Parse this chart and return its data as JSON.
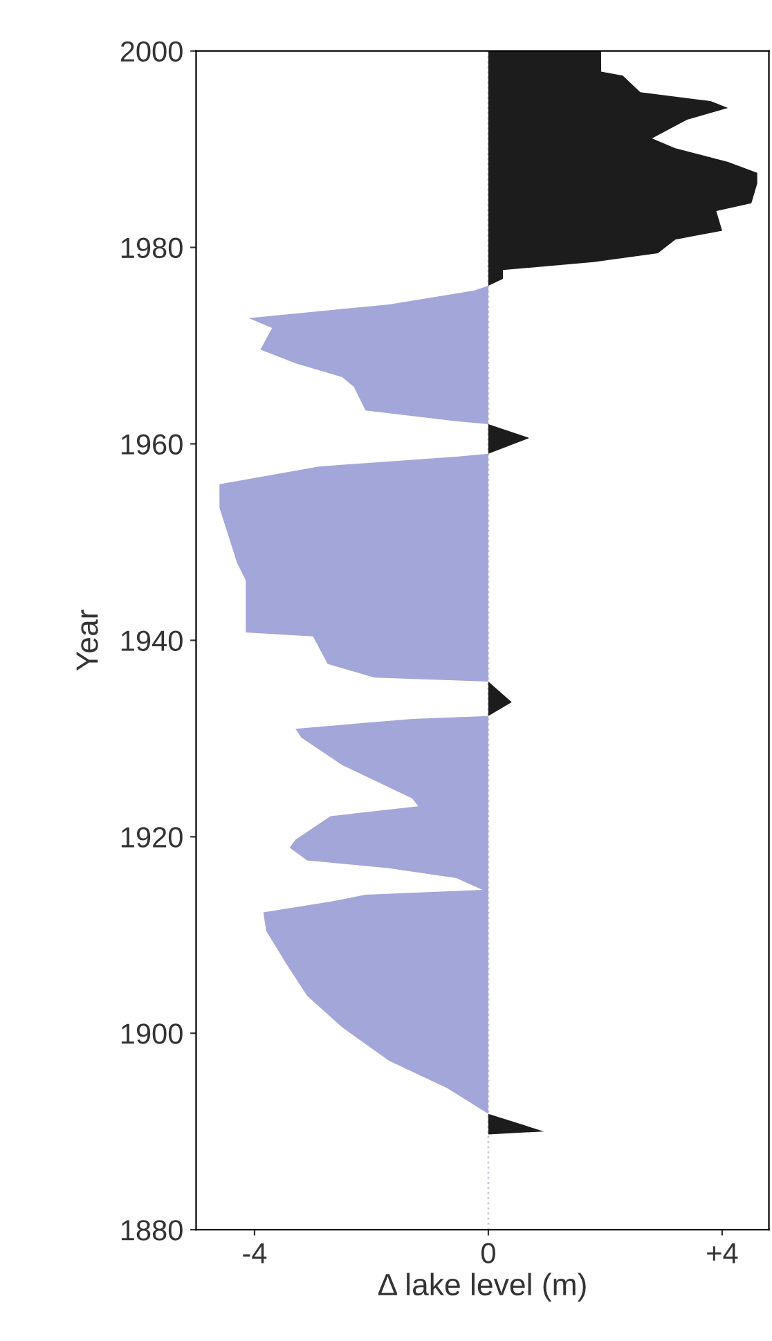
{
  "chart_data": {
    "type": "area",
    "orientation": "horizontal",
    "xlabel": "Δ lake level (m)",
    "ylabel": "Year",
    "x": [
      2000,
      1997.9,
      1997.5,
      1995.8,
      1994.9,
      1994.2,
      1993,
      1991.1,
      1990.1,
      1988.7,
      1987.6,
      1986.5,
      1984.5,
      1983.7,
      1981.7,
      1980.8,
      1979.4,
      1978.5,
      1977.7,
      1976.8,
      1976.1,
      1975.6,
      1974.2,
      1972.8,
      1971.8,
      1969.6,
      1968.2,
      1966.8,
      1965.8,
      1963.4,
      1962.3,
      1962,
      1960.6,
      1959,
      1958.7,
      1957.7,
      1955.9,
      1953.5,
      1947.9,
      1946.1,
      1940.8,
      1940.4,
      1937.6,
      1936.2,
      1935.8,
      1933.7,
      1932.3,
      1932,
      1931,
      1930.1,
      1927.3,
      1923.9,
      1923.1,
      1922.1,
      1919.7,
      1918.9,
      1917.6,
      1916.8,
      1915.8,
      1914.6,
      1914.1,
      1913.4,
      1912.3,
      1910.4,
      1907,
      1903.8,
      1900.6,
      1897.2,
      1894.4,
      1891.8,
      1890,
      1889.7
    ],
    "series": [
      {
        "color": "#1c1c1c",
        "values": [
          1.93,
          1.93,
          2.3,
          2.6,
          3.8,
          4.1,
          3.4,
          2.8,
          3.2,
          4.1,
          4.6,
          4.6,
          4.5,
          3.9,
          4.0,
          3.2,
          2.9,
          1.8,
          0.25,
          0.25,
          0,
          null,
          null,
          null,
          null,
          null,
          null,
          null,
          null,
          null,
          null,
          0,
          0.7,
          0,
          null,
          null,
          null,
          null,
          null,
          null,
          null,
          null,
          null,
          null,
          0,
          0.4,
          0,
          null,
          null,
          null,
          null,
          null,
          null,
          null,
          null,
          null,
          null,
          null,
          null,
          null,
          null,
          null,
          null,
          null,
          null,
          null,
          null,
          null,
          null,
          0,
          0.95,
          0
        ]
      },
      {
        "color": "#a3a6d8",
        "values": [
          null,
          null,
          null,
          null,
          null,
          null,
          null,
          null,
          null,
          null,
          null,
          null,
          null,
          null,
          null,
          null,
          null,
          null,
          null,
          null,
          0,
          -0.25,
          -1.7,
          -4.1,
          -3.7,
          -3.9,
          -3.3,
          -2.5,
          -2.3,
          -2.1,
          -0.55,
          0,
          null,
          0,
          -0.55,
          -2.9,
          -4.6,
          -4.6,
          -4.3,
          -4.15,
          -4.15,
          -3.0,
          -2.75,
          -1.95,
          0,
          null,
          0,
          -1.3,
          -3.3,
          -3.2,
          -2.5,
          -1.3,
          -1.2,
          -2.7,
          -3.3,
          -3.4,
          -3.1,
          -1.7,
          -0.55,
          -0.1,
          -2.1,
          -2.7,
          -3.85,
          -3.8,
          -3.45,
          -3.1,
          -2.5,
          -1.7,
          -0.7,
          0,
          null,
          null
        ]
      }
    ],
    "xlim": [
      -5,
      4.8
    ],
    "xticks": [
      {
        "value": -4,
        "label": "-4"
      },
      0,
      {
        "value": 4,
        "label": "+4"
      }
    ],
    "ylim": [
      1880,
      2000
    ],
    "yticks": [
      1880,
      1900,
      1920,
      1940,
      1960,
      1980,
      2000
    ],
    "ref_lines": [
      {
        "axis": "x",
        "value": 0,
        "color": "#c8c8d8",
        "line_style": "dotted"
      }
    ],
    "grid": false
  }
}
